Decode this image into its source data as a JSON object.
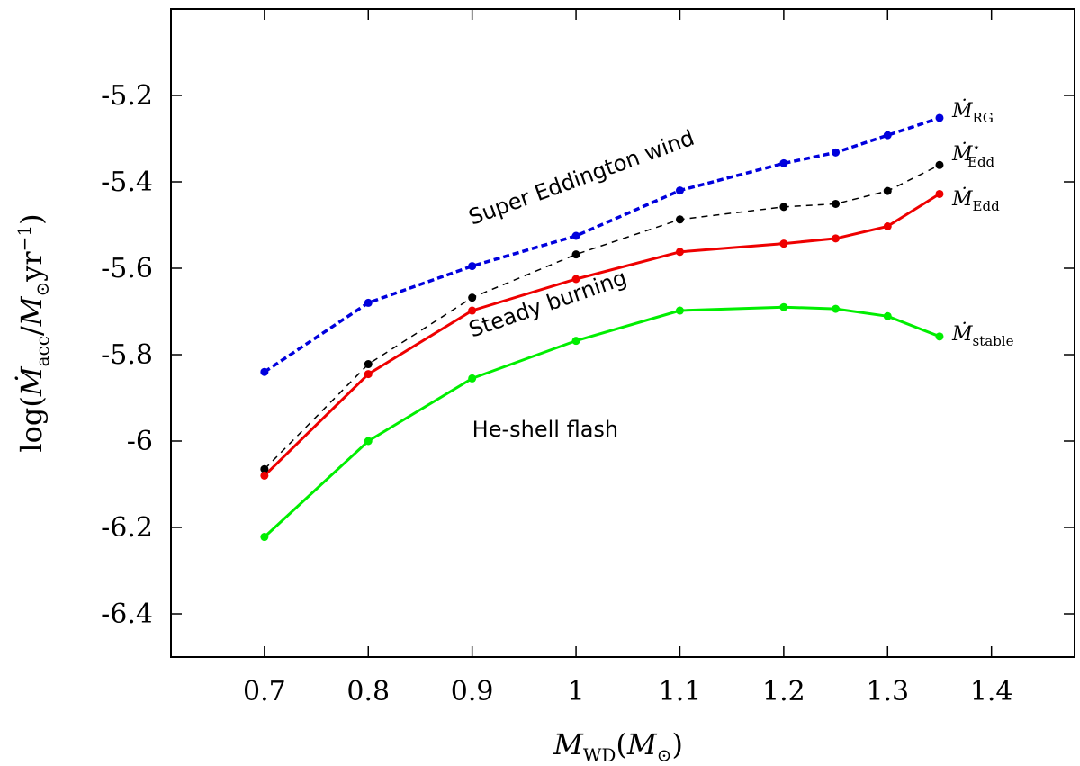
{
  "chart_data": {
    "type": "line",
    "xlabel": "M_WD(M_⊙)",
    "ylabel": "log(Ṁ_acc/M_⊙yr^-1)",
    "xlim": [
      0.61,
      1.48
    ],
    "ylim": [
      -6.5,
      -5.2
    ],
    "xticks": [
      0.7,
      0.8,
      0.9,
      1,
      1.1,
      1.2,
      1.3,
      1.4
    ],
    "xtick_labels": [
      "0.7",
      "0.8",
      "0.9",
      "1",
      "1.1",
      "1.2",
      "1.3",
      "1.4"
    ],
    "yticks": [
      -5.2,
      -5.4,
      -5.6,
      -5.8,
      -6,
      -6.2,
      -6.4
    ],
    "ytick_labels": [
      "-5.2",
      "-5.4",
      "-5.6",
      "-5.8",
      "-6",
      "-6.2",
      "-6.4"
    ],
    "grid": false,
    "x": [
      0.7,
      0.8,
      0.9,
      1.0,
      1.1,
      1.2,
      1.25,
      1.3,
      1.35
    ],
    "series": [
      {
        "name": "Ṁ_RG",
        "label_main": "Ṁ",
        "label_sub": "RG",
        "label_sup": "",
        "color": "#0000dd",
        "style": "dotted",
        "values": [
          -5.84,
          -5.68,
          -5.595,
          -5.525,
          -5.42,
          -5.357,
          -5.332,
          -5.292,
          -5.252
        ]
      },
      {
        "name": "Ṁ*_Edd",
        "label_main": "Ṁ",
        "label_sub": "Edd",
        "label_sup": "⋆",
        "color": "#000000",
        "style": "dashed",
        "values": [
          -6.065,
          -5.822,
          -5.668,
          -5.568,
          -5.487,
          -5.458,
          -5.451,
          -5.421,
          -5.361
        ]
      },
      {
        "name": "Ṁ_Edd",
        "label_main": "Ṁ",
        "label_sub": "Edd",
        "label_sup": "",
        "color": "#ee0000",
        "style": "solid",
        "values": [
          -6.08,
          -5.845,
          -5.698,
          -5.625,
          -5.562,
          -5.543,
          -5.531,
          -5.503,
          -5.428
        ]
      },
      {
        "name": "Ṁ_stable",
        "label_main": "Ṁ",
        "label_sub": "stable",
        "label_sup": "",
        "color": "#00ee00",
        "style": "solid",
        "values": [
          -6.222,
          -6.0,
          -5.855,
          -5.768,
          -5.698,
          -5.69,
          -5.694,
          -5.711,
          -5.758
        ]
      }
    ],
    "annotations": [
      {
        "text": "Super Eddington wind",
        "x": 0.9,
        "y": -5.5,
        "rotate": -20
      },
      {
        "text": "Steady burning",
        "x": 0.9,
        "y": -5.76,
        "rotate": -19
      },
      {
        "text": "He-shell flash",
        "x": 0.9,
        "y": -5.99,
        "rotate": 0
      }
    ]
  }
}
